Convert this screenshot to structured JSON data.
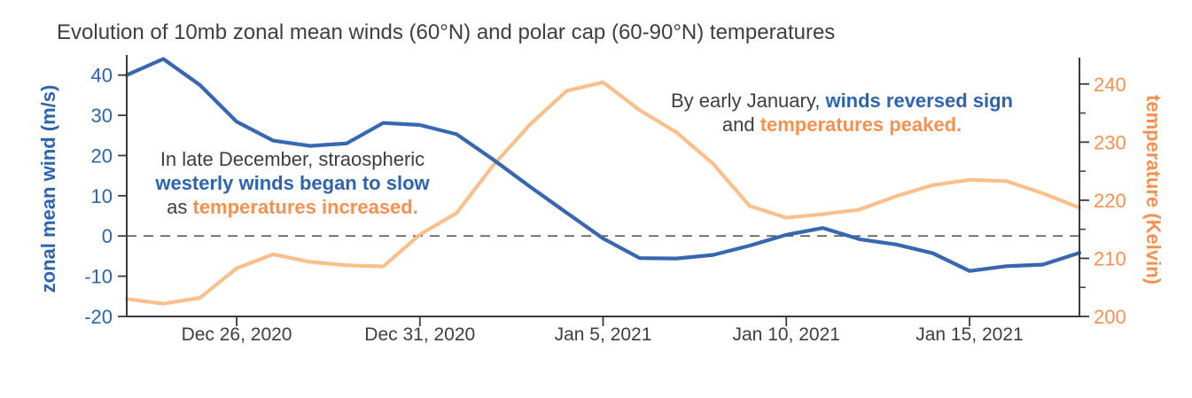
{
  "colors": {
    "wind_text_blue": "#2d64af",
    "temp_text_orange": "#f5914e",
    "dark_text": "#3e3e3e",
    "wind_line_blue": "#3767b1",
    "temp_line_orange": "#f9c08c",
    "spine_gray": "#3a3a3a",
    "zero_line_gray": "#5a5a5a"
  },
  "chart_data": {
    "type": "line",
    "title": "Evolution of 10mb zonal mean winds (60°N) and polar cap (60-90°N) temperatures",
    "x": [
      "Dec 23, 2020",
      "Dec 24, 2020",
      "Dec 25, 2020",
      "Dec 26, 2020",
      "Dec 27, 2020",
      "Dec 28, 2020",
      "Dec 29, 2020",
      "Dec 30, 2020",
      "Dec 31, 2020",
      "Jan 1, 2021",
      "Jan 2, 2021",
      "Jan 3, 2021",
      "Jan 4, 2021",
      "Jan 5, 2021",
      "Jan 6, 2021",
      "Jan 7, 2021",
      "Jan 8, 2021",
      "Jan 9, 2021",
      "Jan 10, 2021",
      "Jan 11, 2021",
      "Jan 12, 2021",
      "Jan 13, 2021",
      "Jan 14, 2021",
      "Jan 15, 2021",
      "Jan 16, 2021",
      "Jan 17, 2021",
      "Jan 18, 2021"
    ],
    "x_tick_positions": [
      3,
      8,
      13,
      18,
      23
    ],
    "x_tick_labels": [
      "Dec 26, 2020",
      "Dec 31, 2020",
      "Jan 5, 2021",
      "Jan 10, 2021",
      "Jan 15, 2021"
    ],
    "series": [
      {
        "name": "zonal mean wind",
        "axis": "left",
        "color": "#3767b1",
        "values": [
          40,
          44,
          37.5,
          28.4,
          23.7,
          22.4,
          23,
          28.1,
          27.6,
          25.3,
          19,
          12.3,
          5.8,
          -0.6,
          -5.5,
          -5.6,
          -4.7,
          -2.4,
          0.3,
          2,
          -0.8,
          -2.1,
          -4.3,
          -8.7,
          -7.5,
          -7.1,
          -4.2
        ]
      },
      {
        "name": "temperature",
        "axis": "right",
        "color": "#f9c08c",
        "values": [
          203,
          202.2,
          203.2,
          208.3,
          210.7,
          209.4,
          208.8,
          208.6,
          214.1,
          217.8,
          226,
          233,
          238.8,
          240.3,
          235.5,
          231.7,
          226.3,
          219,
          217,
          217.6,
          218.4,
          220.7,
          222.6,
          223.5,
          223.3,
          221.2,
          218.7
        ]
      }
    ],
    "left_axis": {
      "label": "zonal mean wind (m/s)",
      "ylim": [
        -20,
        45
      ],
      "ticks": [
        40,
        30,
        20,
        10,
        0,
        -10,
        -20
      ],
      "color": "#2d64af"
    },
    "right_axis": {
      "label": "temperature (Kelvin)",
      "ylim": [
        200,
        245
      ],
      "ticks": [
        240,
        230,
        220,
        210,
        200
      ],
      "minor_ticks": [
        235,
        225,
        215,
        205
      ],
      "color": "#f5914e"
    },
    "zero_line": {
      "value": 0,
      "style": "dashed",
      "color": "#5a5a5a"
    },
    "grid": false,
    "legend": "none",
    "annotations": {
      "late_december": {
        "line1": "In late December, straospheric",
        "line2": "westerly winds began to slow",
        "line3_prefix": "as ",
        "line3_highlight": "temperatures increased."
      },
      "early_january": {
        "line1_prefix": "By early January, ",
        "line1_highlight": "winds reversed sign",
        "line2_prefix": "and ",
        "line2_highlight": "temperatures peaked."
      }
    }
  }
}
